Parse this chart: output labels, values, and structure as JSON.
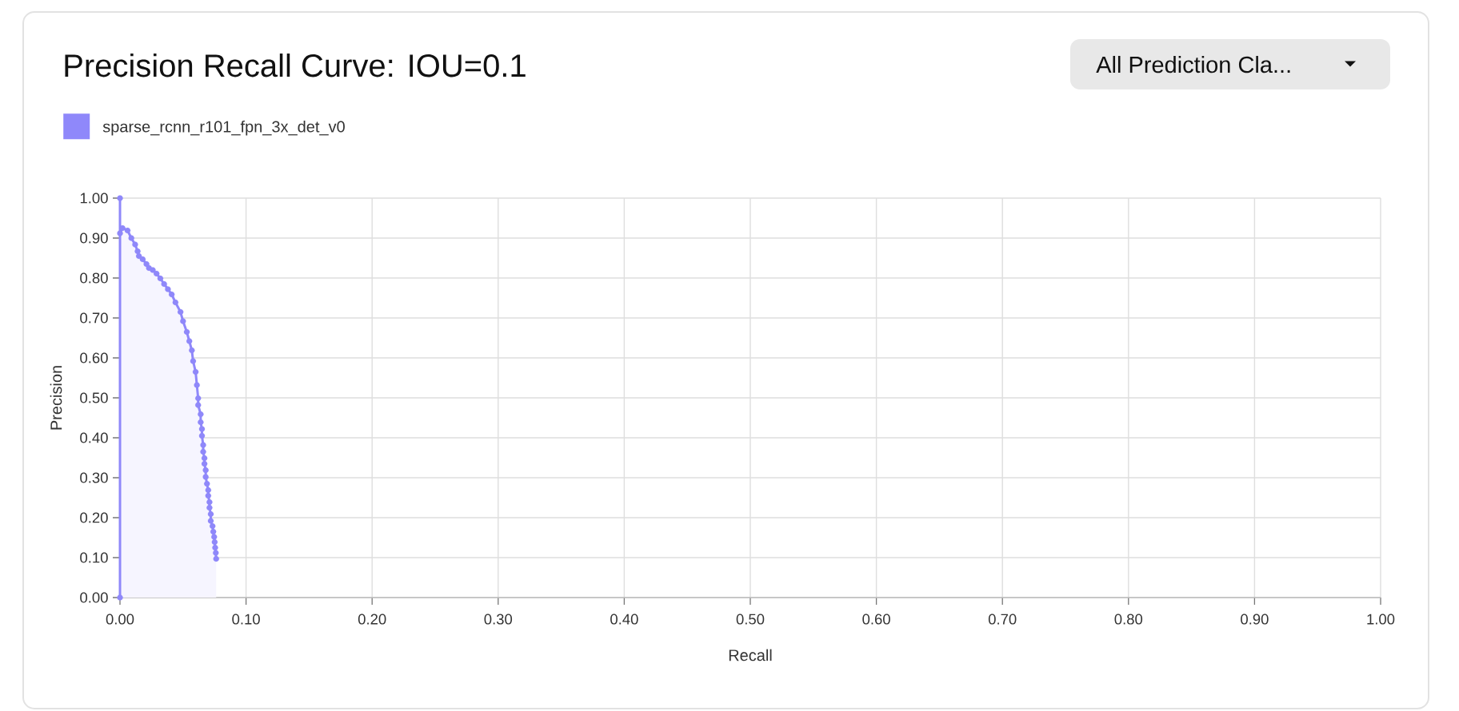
{
  "chart_data": {
    "type": "area",
    "title": "Precision Recall Curve: IOU=0.1",
    "xlabel": "Recall",
    "ylabel": "Precision",
    "annotations": [
      "All Prediction Cla..."
    ],
    "x": [
      0,
      0,
      0,
      0.002,
      0.006,
      0.009,
      0.012,
      0.014,
      0.015,
      0.018,
      0.021,
      0.023,
      0.026,
      0.029,
      0.032,
      0.035,
      0.038,
      0.041,
      0.044,
      0.048,
      0.05,
      0.053,
      0.055,
      0.057,
      0.058,
      0.06,
      0.061,
      0.062,
      0.062,
      0.064,
      0.064,
      0.065,
      0.065,
      0.066,
      0.066,
      0.067,
      0.067,
      0.068,
      0.068,
      0.069,
      0.07,
      0.07,
      0.071,
      0.071,
      0.072,
      0.072,
      0.0734,
      0.074,
      0.0747,
      0.0751,
      0.0755,
      0.076,
      0.0763
    ],
    "series": [
      {
        "name": "sparse_rcnn_r101_fpn_3x_det_v0",
        "color": "#8f88fa",
        "values": [
          0,
          1.0,
          0.912,
          0.925,
          0.919,
          0.9,
          0.884,
          0.867,
          0.855,
          0.847,
          0.835,
          0.825,
          0.82,
          0.811,
          0.799,
          0.785,
          0.772,
          0.759,
          0.739,
          0.715,
          0.692,
          0.665,
          0.642,
          0.619,
          0.592,
          0.565,
          0.532,
          0.499,
          0.482,
          0.459,
          0.439,
          0.422,
          0.405,
          0.382,
          0.365,
          0.349,
          0.335,
          0.319,
          0.302,
          0.285,
          0.269,
          0.255,
          0.239,
          0.225,
          0.209,
          0.192,
          0.179,
          0.165,
          0.152,
          0.139,
          0.125,
          0.112,
          0.097
        ]
      }
    ],
    "xlim": [
      0,
      1
    ],
    "ylim": [
      0,
      1
    ],
    "xticks": [
      {
        "value": 0,
        "label": "0.00"
      },
      {
        "value": 0.1,
        "label": "0.10"
      },
      {
        "value": 0.2,
        "label": "0.20"
      },
      {
        "value": 0.3,
        "label": "0.30"
      },
      {
        "value": 0.4,
        "label": "0.40"
      },
      {
        "value": 0.5,
        "label": "0.50"
      },
      {
        "value": 0.6,
        "label": "0.60"
      },
      {
        "value": 0.7,
        "label": "0.70"
      },
      {
        "value": 0.8,
        "label": "0.80"
      },
      {
        "value": 0.9,
        "label": "0.90"
      },
      {
        "value": 1,
        "label": "1.00"
      }
    ],
    "yticks": [
      {
        "value": 0,
        "label": "0.00"
      },
      {
        "value": 0.1,
        "label": "0.10"
      },
      {
        "value": 0.2,
        "label": "0.20"
      },
      {
        "value": 0.3,
        "label": "0.30"
      },
      {
        "value": 0.4,
        "label": "0.40"
      },
      {
        "value": 0.5,
        "label": "0.50"
      },
      {
        "value": 0.6,
        "label": "0.60"
      },
      {
        "value": 0.7,
        "label": "0.70"
      },
      {
        "value": 0.8,
        "label": "0.80"
      },
      {
        "value": 0.9,
        "label": "0.90"
      },
      {
        "value": 1,
        "label": "1.00"
      }
    ],
    "grid": true,
    "legend": "top left",
    "marker": "circle",
    "line_style": "solid"
  }
}
